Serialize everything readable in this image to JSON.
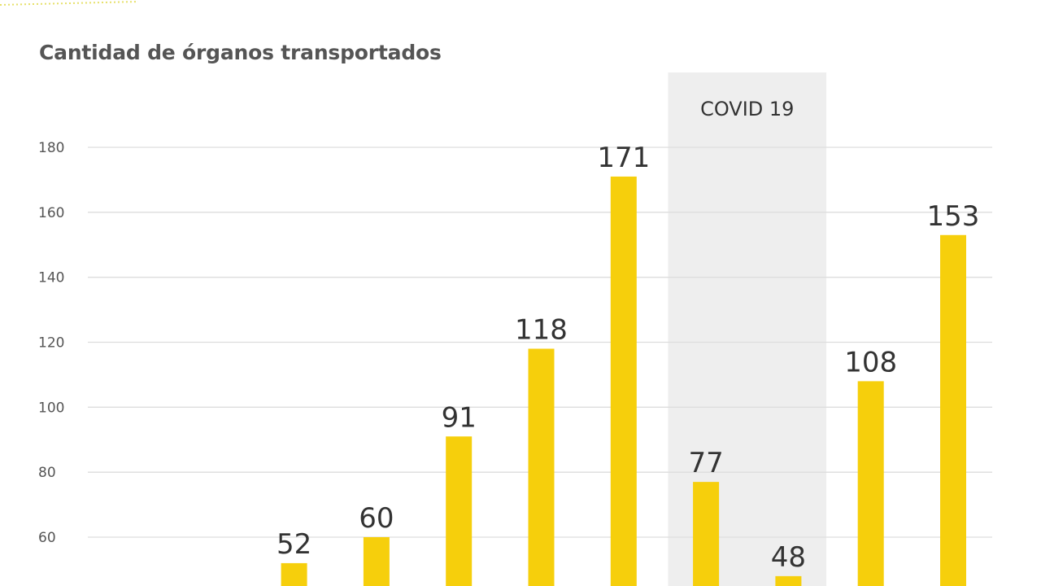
{
  "chart_data": {
    "type": "bar",
    "title": "Cantidad de órganos transportados",
    "xlabel": "",
    "ylabel": "",
    "categories": [
      "",
      "",
      "",
      "",
      "",
      "",
      "",
      "",
      "",
      "",
      ""
    ],
    "values": [
      null,
      null,
      52,
      60,
      91,
      118,
      171,
      77,
      48,
      108,
      153
    ],
    "yticks": [
      180,
      160,
      140,
      120,
      100,
      80,
      60
    ],
    "ylim": [
      40,
      180
    ],
    "grid": true,
    "legend": "none",
    "annotation": {
      "label": "COVID 19",
      "span_categories": [
        7,
        8
      ]
    },
    "colors": {
      "bar": "#F6CF0C",
      "shade": "#EEEEEE",
      "grid": "#DDDDDD",
      "accent_dots": "#E6E06A"
    }
  }
}
